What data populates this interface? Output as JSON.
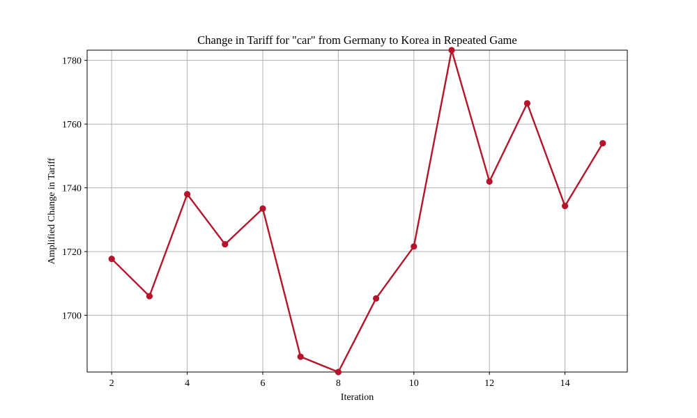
{
  "chart_data": {
    "type": "line",
    "title": "Change in Tariff for \"car\" from Germany to Korea in Repeated Game",
    "xlabel": "Iteration",
    "ylabel": "Amplified Change in Tariff",
    "x": [
      2,
      3,
      4,
      5,
      6,
      7,
      8,
      9,
      10,
      11,
      12,
      13,
      14,
      15
    ],
    "series": [
      {
        "values": [
          1717.7,
          1706.0,
          1738.0,
          1722.3,
          1733.5,
          1687.0,
          1682.2,
          1705.3,
          1721.6,
          1783.2,
          1742.0,
          1766.5,
          1734.3,
          1754.0
        ],
        "color": "#b5142b",
        "marker": "circle"
      }
    ],
    "xlim": [
      1.35,
      15.65
    ],
    "ylim": [
      1682.2,
      1783.2
    ],
    "xticks": [
      2,
      4,
      6,
      8,
      10,
      12,
      14
    ],
    "yticks": [
      1700,
      1720,
      1740,
      1760,
      1780
    ],
    "grid": true,
    "legend": "none"
  }
}
